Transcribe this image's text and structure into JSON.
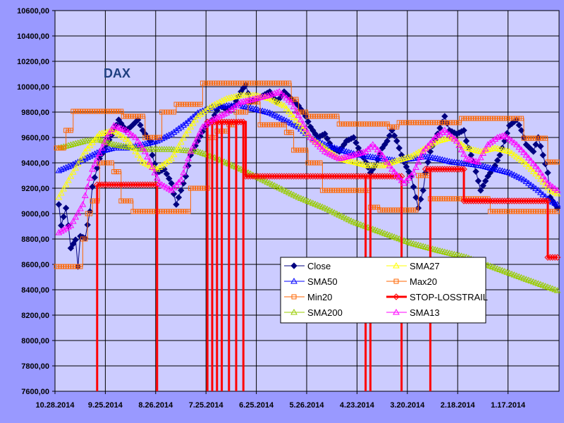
{
  "chart_data": {
    "type": "line",
    "title": "DAX",
    "xlabel": "",
    "ylabel": "",
    "ylim": [
      7600,
      10600
    ],
    "ytick_step": 200,
    "x_count": 210,
    "x_tick_labels": [
      "10.28.2014",
      "9.25.2014",
      "8.26.2014",
      "7.25.2014",
      "6.25.2014",
      "5.26.2014",
      "4.23.2014",
      "3.20.2014",
      "2.18.2014",
      "1.17.2014"
    ],
    "x_tick_every": 21,
    "grid": true,
    "legend_position": "center-right-bottom",
    "colors": {
      "outer_bg": "#9999FF",
      "plot_bg": "#CCCCFF",
      "Close": "#000080",
      "SMA50": "#0000FF",
      "Min20": "#FF6600",
      "SMA200": "#99CC00",
      "SMA27": "#FFFF00",
      "Max20": "#FF6600",
      "STOP-LOSSTRAIL": "#FF0000",
      "SMA13": "#FF00FF"
    },
    "series": [
      {
        "name": "Close",
        "kind": "line",
        "marker": "diamond-filled",
        "points": [
          [
            1,
            9072
          ],
          [
            2,
            8906
          ],
          [
            4,
            9044
          ],
          [
            5,
            8906
          ],
          [
            6,
            8728
          ],
          [
            8,
            8794
          ],
          [
            9,
            8583
          ],
          [
            10,
            8822
          ],
          [
            12,
            8806
          ],
          [
            14,
            9017
          ],
          [
            15,
            9211
          ],
          [
            18,
            9433
          ],
          [
            21,
            9544
          ],
          [
            24,
            9656
          ],
          [
            26,
            9739
          ],
          [
            29,
            9656
          ],
          [
            31,
            9683
          ],
          [
            34,
            9739
          ],
          [
            36,
            9656
          ],
          [
            39,
            9572
          ],
          [
            40,
            9461
          ],
          [
            42,
            9322
          ],
          [
            45,
            9350
          ],
          [
            48,
            9239
          ],
          [
            50,
            9072
          ],
          [
            52,
            9183
          ],
          [
            54,
            9294
          ],
          [
            56,
            9461
          ],
          [
            59,
            9572
          ],
          [
            62,
            9683
          ],
          [
            65,
            9739
          ],
          [
            68,
            9850
          ],
          [
            71,
            9822
          ],
          [
            74,
            9850
          ],
          [
            77,
            9961
          ],
          [
            79,
            10017
          ],
          [
            81,
            9878
          ],
          [
            84,
            9906
          ],
          [
            89,
            9961
          ],
          [
            92,
            9878
          ],
          [
            95,
            9961
          ],
          [
            98,
            9906
          ],
          [
            101,
            9850
          ],
          [
            104,
            9767
          ],
          [
            106,
            9683
          ],
          [
            109,
            9600
          ],
          [
            112,
            9628
          ],
          [
            115,
            9517
          ],
          [
            118,
            9489
          ],
          [
            121,
            9572
          ],
          [
            124,
            9600
          ],
          [
            126,
            9517
          ],
          [
            129,
            9406
          ],
          [
            131,
            9322
          ],
          [
            133,
            9378
          ],
          [
            136,
            9517
          ],
          [
            138,
            9572
          ],
          [
            140,
            9656
          ],
          [
            142,
            9572
          ],
          [
            145,
            9406
          ],
          [
            148,
            9294
          ],
          [
            151,
            9044
          ],
          [
            153,
            9183
          ],
          [
            154,
            9322
          ],
          [
            156,
            9489
          ],
          [
            159,
            9628
          ],
          [
            162,
            9767
          ],
          [
            164,
            9656
          ],
          [
            167,
            9628
          ],
          [
            170,
            9656
          ],
          [
            171,
            9572
          ],
          [
            174,
            9406
          ],
          [
            177,
            9183
          ],
          [
            180,
            9294
          ],
          [
            183,
            9378
          ],
          [
            185,
            9461
          ],
          [
            187,
            9572
          ],
          [
            189,
            9694
          ],
          [
            192,
            9739
          ],
          [
            194,
            9656
          ],
          [
            196,
            9544
          ],
          [
            199,
            9489
          ],
          [
            201,
            9600
          ],
          [
            203,
            9461
          ],
          [
            205,
            9322
          ],
          [
            206,
            9128
          ],
          [
            209,
            9044
          ]
        ]
      },
      {
        "name": "SMA50",
        "kind": "line",
        "marker": "triangle",
        "points": [
          [
            1,
            9339
          ],
          [
            6,
            9378
          ],
          [
            12,
            9433
          ],
          [
            18,
            9489
          ],
          [
            24,
            9517
          ],
          [
            30,
            9517
          ],
          [
            36,
            9544
          ],
          [
            42,
            9572
          ],
          [
            48,
            9628
          ],
          [
            54,
            9711
          ],
          [
            59,
            9794
          ],
          [
            65,
            9839
          ],
          [
            71,
            9850
          ],
          [
            77,
            9850
          ],
          [
            83,
            9822
          ],
          [
            89,
            9794
          ],
          [
            95,
            9739
          ],
          [
            101,
            9683
          ],
          [
            106,
            9600
          ],
          [
            112,
            9544
          ],
          [
            118,
            9506
          ],
          [
            124,
            9472
          ],
          [
            130,
            9450
          ],
          [
            136,
            9433
          ],
          [
            142,
            9417
          ],
          [
            148,
            9433
          ],
          [
            154,
            9450
          ],
          [
            159,
            9433
          ],
          [
            165,
            9406
          ],
          [
            171,
            9394
          ],
          [
            177,
            9378
          ],
          [
            183,
            9350
          ],
          [
            189,
            9322
          ],
          [
            195,
            9267
          ],
          [
            201,
            9183
          ],
          [
            206,
            9100
          ],
          [
            209,
            9072
          ]
        ]
      },
      {
        "name": "Min20",
        "kind": "step",
        "marker": "square",
        "segments": [
          [
            0,
            10,
            8583
          ],
          [
            11,
            12,
            8800
          ],
          [
            13,
            14,
            9000
          ],
          [
            15,
            17,
            9100
          ],
          [
            18,
            23,
            9400
          ],
          [
            24,
            26,
            9330
          ],
          [
            27,
            31,
            9100
          ],
          [
            32,
            55,
            9017
          ],
          [
            56,
            63,
            9200
          ],
          [
            64,
            66,
            9600
          ],
          [
            67,
            71,
            9650
          ],
          [
            72,
            74,
            9700
          ],
          [
            75,
            79,
            9800
          ],
          [
            80,
            84,
            9880
          ],
          [
            85,
            95,
            9700
          ],
          [
            96,
            98,
            9640
          ],
          [
            99,
            104,
            9500
          ],
          [
            105,
            110,
            9400
          ],
          [
            111,
            130,
            9183
          ],
          [
            131,
            134,
            9050
          ],
          [
            135,
            150,
            9028
          ],
          [
            151,
            155,
            9300
          ],
          [
            156,
            180,
            9117
          ],
          [
            181,
            209,
            9017
          ]
        ]
      },
      {
        "name": "SMA200",
        "kind": "line",
        "marker": "triangle",
        "points": [
          [
            1,
            9517
          ],
          [
            12,
            9572
          ],
          [
            18,
            9583
          ],
          [
            24,
            9544
          ],
          [
            36,
            9506
          ],
          [
            48,
            9506
          ],
          [
            59,
            9489
          ],
          [
            65,
            9450
          ],
          [
            77,
            9350
          ],
          [
            89,
            9239
          ],
          [
            101,
            9128
          ],
          [
            112,
            9044
          ],
          [
            124,
            8933
          ],
          [
            136,
            8850
          ],
          [
            148,
            8767
          ],
          [
            159,
            8711
          ],
          [
            171,
            8656
          ],
          [
            183,
            8572
          ],
          [
            195,
            8489
          ],
          [
            209,
            8394
          ]
        ]
      },
      {
        "name": "SMA27",
        "kind": "line",
        "marker": "triangle",
        "points": [
          [
            1,
            9128
          ],
          [
            6,
            9294
          ],
          [
            12,
            9489
          ],
          [
            18,
            9628
          ],
          [
            24,
            9656
          ],
          [
            30,
            9572
          ],
          [
            36,
            9406
          ],
          [
            42,
            9350
          ],
          [
            48,
            9433
          ],
          [
            54,
            9628
          ],
          [
            59,
            9767
          ],
          [
            65,
            9850
          ],
          [
            71,
            9906
          ],
          [
            77,
            9933
          ],
          [
            83,
            9933
          ],
          [
            89,
            9906
          ],
          [
            95,
            9850
          ],
          [
            101,
            9711
          ],
          [
            106,
            9600
          ],
          [
            112,
            9517
          ],
          [
            118,
            9433
          ],
          [
            124,
            9406
          ],
          [
            130,
            9378
          ],
          [
            136,
            9378
          ],
          [
            142,
            9417
          ],
          [
            148,
            9450
          ],
          [
            154,
            9517
          ],
          [
            159,
            9572
          ],
          [
            165,
            9600
          ],
          [
            171,
            9517
          ],
          [
            177,
            9489
          ],
          [
            183,
            9517
          ],
          [
            189,
            9489
          ],
          [
            195,
            9406
          ],
          [
            201,
            9294
          ],
          [
            206,
            9183
          ],
          [
            209,
            9156
          ]
        ]
      },
      {
        "name": "Max20",
        "kind": "step",
        "marker": "square",
        "segments": [
          [
            0,
            3,
            9517
          ],
          [
            4,
            6,
            9656
          ],
          [
            7,
            27,
            9806
          ],
          [
            28,
            36,
            9767
          ],
          [
            37,
            43,
            9600
          ],
          [
            44,
            49,
            9800
          ],
          [
            50,
            60,
            9861
          ],
          [
            61,
            97,
            10028
          ],
          [
            98,
            100,
            9900
          ],
          [
            101,
            104,
            9800
          ],
          [
            105,
            117,
            9767
          ],
          [
            118,
            138,
            9706
          ],
          [
            139,
            142,
            9683
          ],
          [
            143,
            168,
            9717
          ],
          [
            169,
            194,
            9750
          ],
          [
            195,
            204,
            9594
          ],
          [
            205,
            209,
            9406
          ]
        ]
      },
      {
        "name": "STOP-LOSSTRAIL",
        "kind": "step",
        "marker": "diamond",
        "segments": [
          [
            17,
            42,
            9228
          ],
          [
            63,
            78,
            9722
          ],
          [
            79,
            144,
            9294
          ],
          [
            154,
            170,
            9350
          ],
          [
            170,
            205,
            9100
          ],
          [
            205,
            209,
            8655
          ]
        ],
        "drops": [
          17,
          42,
          63,
          65,
          67,
          69,
          72,
          75,
          78,
          129,
          131,
          144,
          156
        ]
      },
      {
        "name": "SMA13",
        "kind": "line",
        "marker": "triangle",
        "points": [
          [
            1,
            8850
          ],
          [
            6,
            8906
          ],
          [
            11,
            9072
          ],
          [
            15,
            9350
          ],
          [
            21,
            9600
          ],
          [
            24,
            9694
          ],
          [
            29,
            9656
          ],
          [
            33,
            9600
          ],
          [
            37,
            9489
          ],
          [
            43,
            9239
          ],
          [
            48,
            9183
          ],
          [
            52,
            9267
          ],
          [
            56,
            9489
          ],
          [
            61,
            9683
          ],
          [
            65,
            9739
          ],
          [
            71,
            9794
          ],
          [
            77,
            9878
          ],
          [
            83,
            9906
          ],
          [
            89,
            9933
          ],
          [
            93,
            9961
          ],
          [
            98,
            9878
          ],
          [
            102,
            9739
          ],
          [
            106,
            9600
          ],
          [
            112,
            9489
          ],
          [
            118,
            9433
          ],
          [
            124,
            9461
          ],
          [
            129,
            9489
          ],
          [
            132,
            9544
          ],
          [
            136,
            9461
          ],
          [
            140,
            9350
          ],
          [
            145,
            9239
          ],
          [
            149,
            9322
          ],
          [
            153,
            9489
          ],
          [
            158,
            9600
          ],
          [
            162,
            9656
          ],
          [
            167,
            9572
          ],
          [
            171,
            9433
          ],
          [
            176,
            9406
          ],
          [
            180,
            9544
          ],
          [
            184,
            9600
          ],
          [
            187,
            9617
          ],
          [
            192,
            9544
          ],
          [
            196,
            9461
          ],
          [
            201,
            9350
          ],
          [
            205,
            9239
          ],
          [
            209,
            9183
          ]
        ]
      }
    ],
    "legend_order": [
      "Close",
      "SMA27",
      "SMA50",
      "Max20",
      "Min20",
      "STOP-LOSSTRAIL",
      "SMA200",
      "SMA13"
    ]
  }
}
